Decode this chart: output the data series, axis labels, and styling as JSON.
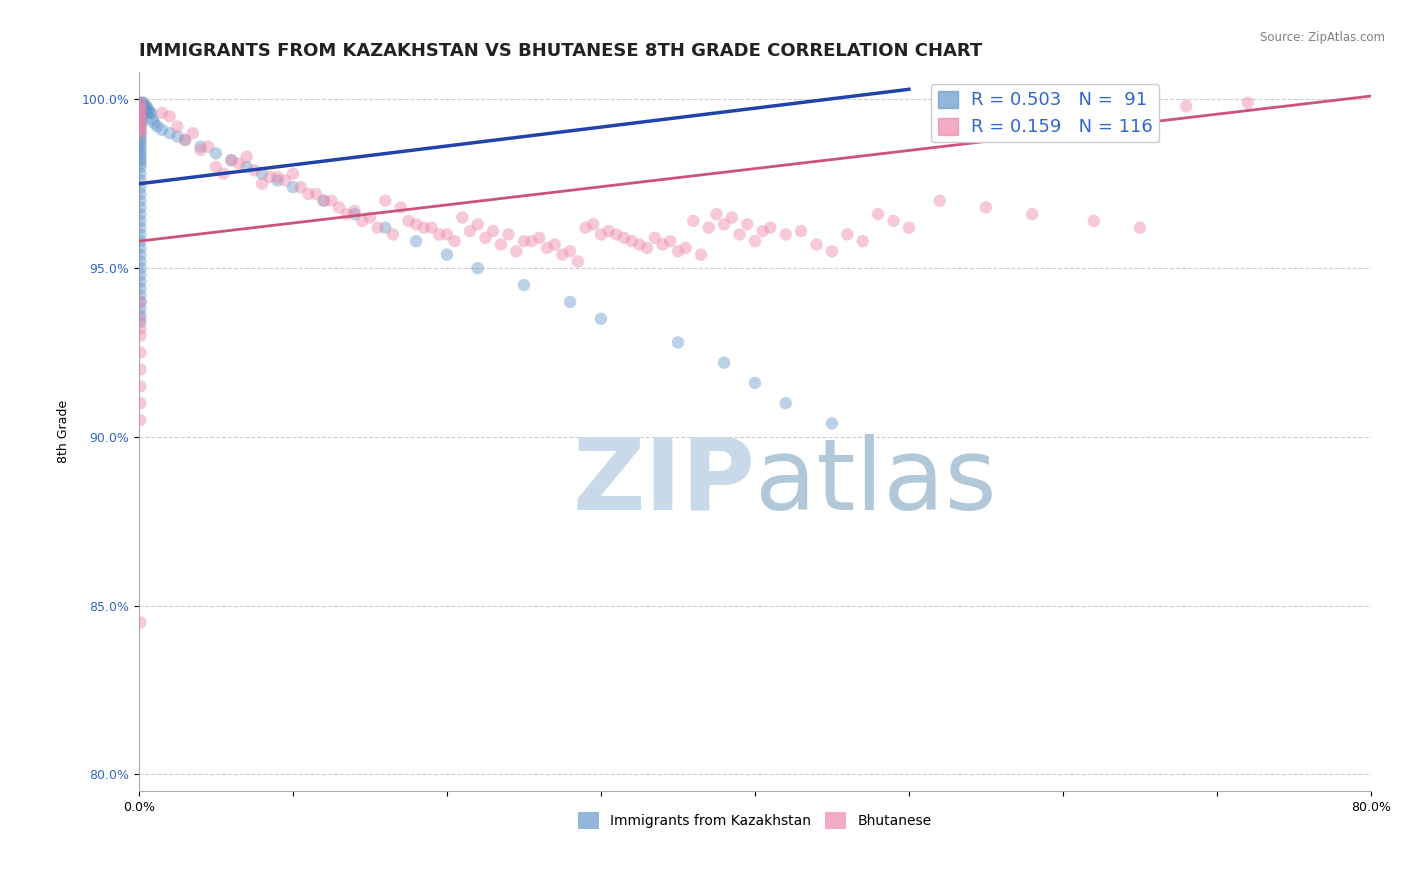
{
  "title": "IMMIGRANTS FROM KAZAKHSTAN VS BHUTANESE 8TH GRADE CORRELATION CHART",
  "source_text": "Source: ZipAtlas.com",
  "ylabel": "8th Grade",
  "xlim": [
    0.0,
    0.8
  ],
  "ylim": [
    0.795,
    1.008
  ],
  "xticks": [
    0.0,
    0.1,
    0.2,
    0.3,
    0.4,
    0.5,
    0.6,
    0.7,
    0.8
  ],
  "xticklabels": [
    "0.0%",
    "",
    "",
    "",
    "",
    "",
    "",
    "",
    "80.0%"
  ],
  "yticks": [
    0.8,
    0.85,
    0.9,
    0.95,
    1.0
  ],
  "yticklabels": [
    "80.0%",
    "85.0%",
    "90.0%",
    "95.0%",
    "100.0%"
  ],
  "legend_entries": [
    {
      "label": "Immigrants from Kazakhstan",
      "color": "#a8c4e0",
      "R": 0.503,
      "N": 91
    },
    {
      "label": "Bhutanese",
      "color": "#f0a0b8",
      "R": 0.159,
      "N": 116
    }
  ],
  "blue_scatter_x": [
    0.001,
    0.001,
    0.001,
    0.001,
    0.001,
    0.001,
    0.001,
    0.001,
    0.001,
    0.001,
    0.001,
    0.001,
    0.001,
    0.001,
    0.001,
    0.001,
    0.001,
    0.001,
    0.001,
    0.001,
    0.002,
    0.002,
    0.002,
    0.002,
    0.002,
    0.002,
    0.002,
    0.003,
    0.003,
    0.003,
    0.003,
    0.004,
    0.004,
    0.004,
    0.005,
    0.005,
    0.006,
    0.006,
    0.007,
    0.008,
    0.009,
    0.01,
    0.012,
    0.015,
    0.02,
    0.025,
    0.03,
    0.04,
    0.05,
    0.06,
    0.07,
    0.08,
    0.09,
    0.1,
    0.12,
    0.14,
    0.16,
    0.18,
    0.2,
    0.22,
    0.25,
    0.28,
    0.3,
    0.35,
    0.38,
    0.4,
    0.42,
    0.45,
    0.001,
    0.001,
    0.001,
    0.001,
    0.001,
    0.001,
    0.001,
    0.001,
    0.001,
    0.001,
    0.001,
    0.001,
    0.001,
    0.001,
    0.001,
    0.001,
    0.001,
    0.001,
    0.001,
    0.001,
    0.001,
    0.001,
    0.001
  ],
  "blue_scatter_y": [
    0.999,
    0.998,
    0.997,
    0.996,
    0.995,
    0.994,
    0.993,
    0.992,
    0.991,
    0.99,
    0.989,
    0.988,
    0.987,
    0.986,
    0.985,
    0.984,
    0.983,
    0.982,
    0.981,
    0.98,
    0.999,
    0.998,
    0.997,
    0.996,
    0.995,
    0.994,
    0.993,
    0.999,
    0.998,
    0.997,
    0.996,
    0.998,
    0.997,
    0.996,
    0.998,
    0.997,
    0.997,
    0.996,
    0.996,
    0.996,
    0.994,
    0.993,
    0.992,
    0.991,
    0.99,
    0.989,
    0.988,
    0.986,
    0.984,
    0.982,
    0.98,
    0.978,
    0.976,
    0.974,
    0.97,
    0.966,
    0.962,
    0.958,
    0.954,
    0.95,
    0.945,
    0.94,
    0.935,
    0.928,
    0.922,
    0.916,
    0.91,
    0.904,
    0.978,
    0.976,
    0.974,
    0.972,
    0.97,
    0.968,
    0.966,
    0.964,
    0.962,
    0.96,
    0.958,
    0.956,
    0.954,
    0.952,
    0.95,
    0.948,
    0.946,
    0.944,
    0.942,
    0.94,
    0.938,
    0.936,
    0.934
  ],
  "pink_scatter_x": [
    0.05,
    0.08,
    0.1,
    0.12,
    0.15,
    0.17,
    0.2,
    0.22,
    0.25,
    0.28,
    0.3,
    0.32,
    0.35,
    0.37,
    0.4,
    0.42,
    0.45,
    0.47,
    0.5,
    0.02,
    0.04,
    0.06,
    0.09,
    0.11,
    0.14,
    0.16,
    0.19,
    0.21,
    0.24,
    0.27,
    0.29,
    0.31,
    0.34,
    0.36,
    0.39,
    0.41,
    0.44,
    0.46,
    0.49,
    0.03,
    0.07,
    0.13,
    0.18,
    0.23,
    0.26,
    0.33,
    0.38,
    0.43,
    0.48,
    0.015,
    0.055,
    0.095,
    0.135,
    0.175,
    0.215,
    0.255,
    0.295,
    0.335,
    0.375,
    0.025,
    0.065,
    0.105,
    0.145,
    0.185,
    0.225,
    0.265,
    0.305,
    0.345,
    0.385,
    0.035,
    0.075,
    0.115,
    0.155,
    0.195,
    0.235,
    0.275,
    0.315,
    0.355,
    0.395,
    0.045,
    0.085,
    0.125,
    0.165,
    0.205,
    0.245,
    0.285,
    0.325,
    0.365,
    0.405,
    0.68,
    0.72,
    0.52,
    0.55,
    0.58,
    0.62,
    0.65,
    0.001,
    0.001,
    0.001,
    0.001,
    0.001,
    0.001,
    0.001,
    0.001,
    0.001,
    0.001,
    0.001,
    0.001,
    0.001,
    0.001,
    0.001,
    0.001,
    0.001,
    0.001,
    0.001,
    0.001
  ],
  "pink_scatter_y": [
    0.98,
    0.975,
    0.978,
    0.97,
    0.965,
    0.968,
    0.96,
    0.963,
    0.958,
    0.955,
    0.96,
    0.958,
    0.955,
    0.962,
    0.958,
    0.96,
    0.955,
    0.958,
    0.962,
    0.995,
    0.985,
    0.982,
    0.977,
    0.972,
    0.967,
    0.97,
    0.962,
    0.965,
    0.96,
    0.957,
    0.962,
    0.96,
    0.957,
    0.964,
    0.96,
    0.962,
    0.957,
    0.96,
    0.964,
    0.988,
    0.983,
    0.968,
    0.963,
    0.961,
    0.959,
    0.956,
    0.963,
    0.961,
    0.966,
    0.996,
    0.978,
    0.976,
    0.966,
    0.964,
    0.961,
    0.958,
    0.963,
    0.959,
    0.966,
    0.992,
    0.981,
    0.974,
    0.964,
    0.962,
    0.959,
    0.956,
    0.961,
    0.958,
    0.965,
    0.99,
    0.979,
    0.972,
    0.962,
    0.96,
    0.957,
    0.954,
    0.959,
    0.956,
    0.963,
    0.986,
    0.977,
    0.97,
    0.96,
    0.958,
    0.955,
    0.952,
    0.957,
    0.954,
    0.961,
    0.998,
    0.999,
    0.97,
    0.968,
    0.966,
    0.964,
    0.962,
    0.94,
    0.935,
    0.932,
    0.93,
    0.925,
    0.92,
    0.915,
    0.91,
    0.905,
    0.845,
    0.999,
    0.998,
    0.997,
    0.996,
    0.995,
    0.994,
    0.993,
    0.992,
    0.991,
    0.99
  ],
  "blue_line_x": [
    0.0,
    0.5
  ],
  "blue_line_y": [
    0.975,
    1.003
  ],
  "pink_line_x": [
    0.0,
    0.8
  ],
  "pink_line_y": [
    0.958,
    1.001
  ],
  "watermark_zip": "ZIP",
  "watermark_atlas": "atlas",
  "watermark_color_zip": "#c8daea",
  "watermark_color_atlas": "#b0c8d8",
  "legend_text_color": "#3366cc",
  "title_color": "#222222",
  "title_fontsize": 13,
  "ylabel_fontsize": 9,
  "tick_fontsize": 9,
  "grid_color": "#cccccc",
  "grid_style": "--",
  "background_color": "#ffffff",
  "scatter_size": 80,
  "scatter_alpha": 0.45,
  "blue_scatter_color": "#6699cc",
  "pink_scatter_color": "#ee88aa",
  "blue_line_color": "#2244aa",
  "pink_line_color": "#cc5577"
}
